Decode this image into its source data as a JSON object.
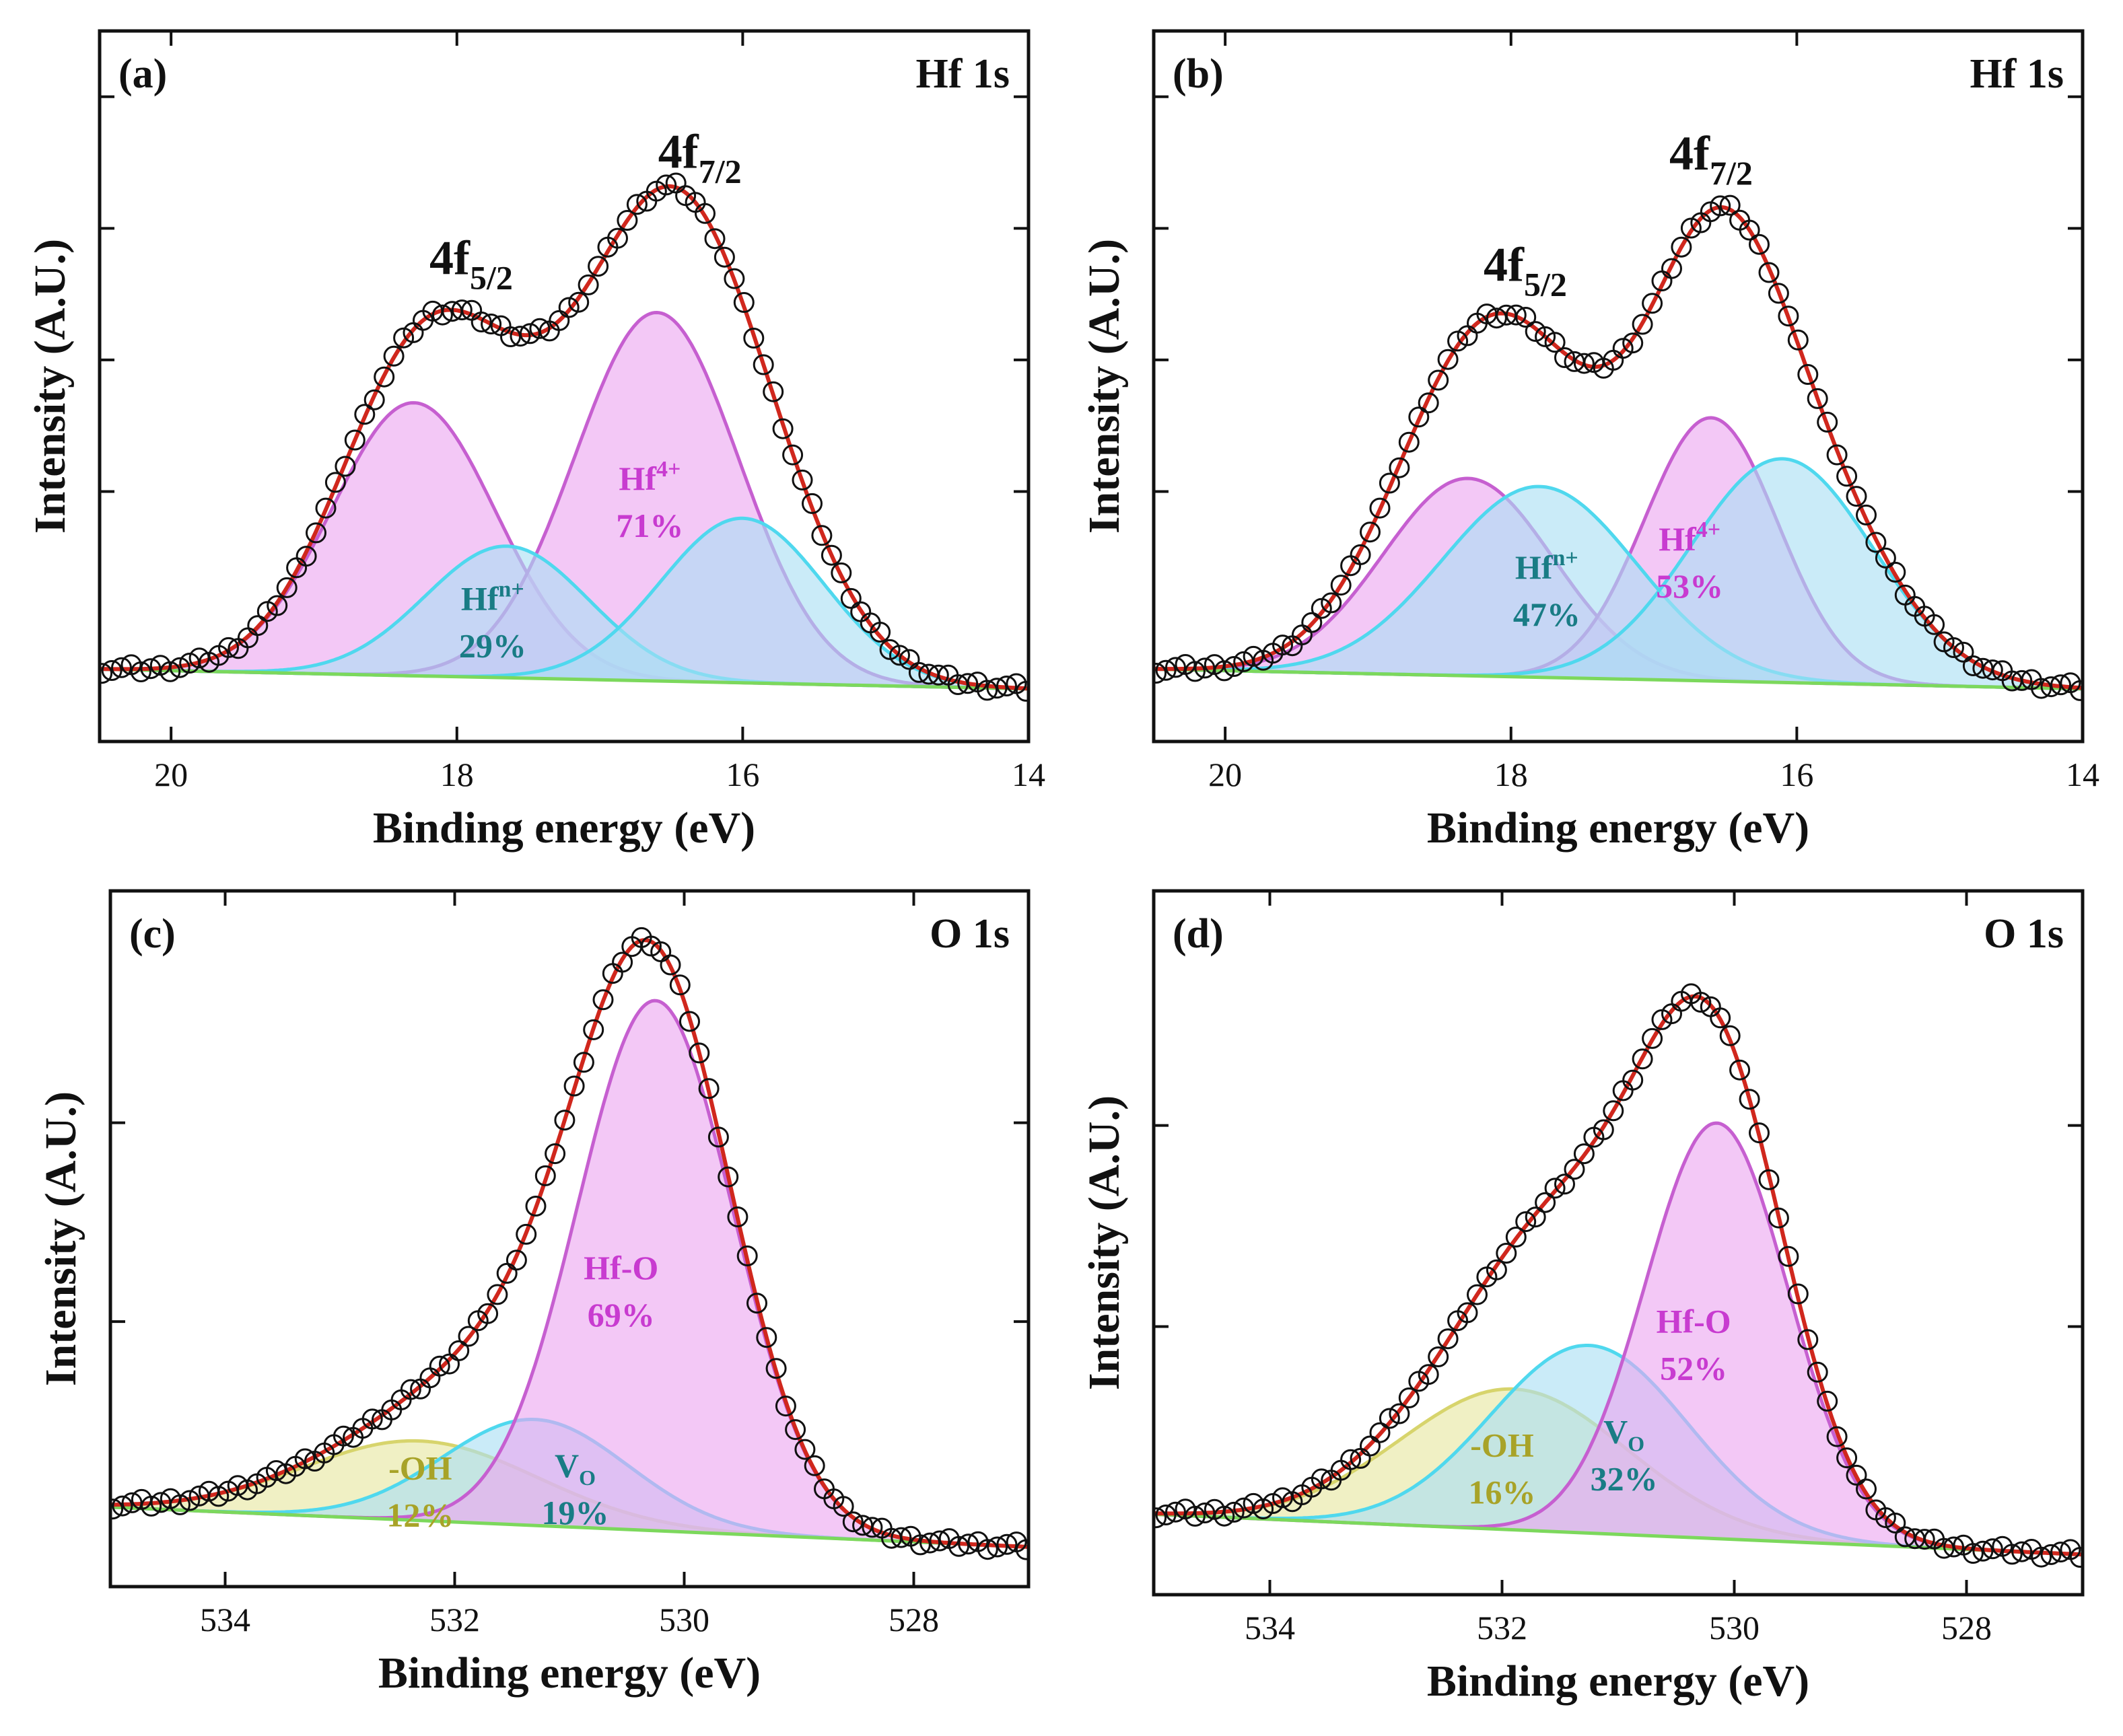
{
  "colors": {
    "magenta_fill": "#EBA6F0",
    "magenta_edge": "#C65FD0",
    "magenta_text": "#C83BD0",
    "cyan_fill": "#A9DEF3",
    "cyan_edge": "#4FD8EE",
    "cyan_text": "#197C85",
    "yellow_fill": "#E6E6A0",
    "yellow_edge": "#D7D46C",
    "yellow_text": "#A8A328",
    "background_line": "#7CD85C",
    "envelope": "#D0271D",
    "markers": "#111111"
  },
  "chart_data": [
    {
      "type": "line",
      "panel": "(a)",
      "title": "Hf 1s",
      "xlabel": "Binding energy (eV)",
      "ylabel": "Intensity (A.U.)",
      "xlim": [
        20.5,
        14
      ],
      "x_reversed": true,
      "ylim": [
        -0.08,
        1.0
      ],
      "xticks": [
        20,
        18,
        16,
        14
      ],
      "y_ticks_unlabeled": [
        0.3,
        0.5,
        0.7,
        0.9
      ],
      "peak_labels": [
        {
          "text": "4f",
          "sub": "5/2",
          "x": 17.9
        },
        {
          "text": "4f",
          "sub": "7/2",
          "x": 16.3
        }
      ],
      "background": {
        "x": [
          20.5,
          14
        ],
        "y": [
          0.03,
          0.0
        ]
      },
      "components": [
        {
          "group": "Hf4+",
          "color": "magenta",
          "peaks": [
            {
              "center": 18.3,
              "height": 0.415,
              "fwhm": 1.35
            },
            {
              "center": 16.6,
              "height": 0.56,
              "fwhm": 1.35
            }
          ]
        },
        {
          "group": "Hfn+",
          "color": "cyan",
          "peaks": [
            {
              "center": 17.65,
              "height": 0.2,
              "fwhm": 1.35
            },
            {
              "center": 16.0,
              "height": 0.25,
              "fwhm": 1.35
            }
          ]
        }
      ],
      "component_labels": [
        {
          "name": "Hf",
          "sup": "4+",
          "percent": "71%",
          "color": "magenta",
          "x": 16.65
        },
        {
          "name": "Hf",
          "sup": "n+",
          "percent": "29%",
          "color": "cyan",
          "x": 17.75
        }
      ]
    },
    {
      "type": "line",
      "panel": "(b)",
      "title": "Hf 1s",
      "xlabel": "Binding energy (eV)",
      "ylabel": "Intensity (A.U.)",
      "xlim": [
        20.5,
        14
      ],
      "x_reversed": true,
      "ylim": [
        -0.08,
        1.0
      ],
      "xticks": [
        20,
        18,
        16,
        14
      ],
      "y_ticks_unlabeled": [
        0.3,
        0.5,
        0.7,
        0.9
      ],
      "peak_labels": [
        {
          "text": "4f",
          "sub": "5/2",
          "x": 17.9
        },
        {
          "text": "4f",
          "sub": "7/2",
          "x": 16.6
        }
      ],
      "background": {
        "x": [
          20.5,
          14
        ],
        "y": [
          0.03,
          0.0
        ]
      },
      "components": [
        {
          "group": "Hf4+",
          "color": "magenta",
          "peaks": [
            {
              "center": 18.3,
              "height": 0.3,
              "fwhm": 1.4
            },
            {
              "center": 16.6,
              "height": 0.4,
              "fwhm": 1.1
            }
          ]
        },
        {
          "group": "Hfn+",
          "color": "cyan",
          "peaks": [
            {
              "center": 17.8,
              "height": 0.29,
              "fwhm": 1.6
            },
            {
              "center": 16.1,
              "height": 0.34,
              "fwhm": 1.5
            }
          ]
        }
      ],
      "component_labels": [
        {
          "name": "Hf",
          "sup": "4+",
          "percent": "53%",
          "color": "magenta",
          "x": 16.75
        },
        {
          "name": "Hf",
          "sup": "n+",
          "percent": "47%",
          "color": "cyan",
          "x": 17.75
        }
      ]
    },
    {
      "type": "line",
      "panel": "(c)",
      "title": "O 1s",
      "xlabel": "Binding energy (eV)",
      "ylabel": "Intensity (A.U.)",
      "xlim": [
        535,
        527
      ],
      "x_reversed": true,
      "ylim": [
        -0.05,
        1.0
      ],
      "xticks": [
        534,
        532,
        530,
        528
      ],
      "y_ticks_unlabeled": [
        0.35,
        0.65
      ],
      "background": {
        "x": [
          535,
          527
        ],
        "y": [
          0.07,
          0.01
        ]
      },
      "components": [
        {
          "group": "-OH",
          "color": "yellow",
          "peaks": [
            {
              "center": 532.3,
              "height": 0.12,
              "fwhm": 2.4
            }
          ]
        },
        {
          "group": "VO",
          "color": "cyan",
          "peaks": [
            {
              "center": 531.3,
              "height": 0.16,
              "fwhm": 1.9
            }
          ]
        },
        {
          "group": "Hf-O",
          "color": "magenta",
          "peaks": [
            {
              "center": 530.25,
              "height": 0.8,
              "fwhm": 1.6
            }
          ]
        }
      ],
      "component_labels": [
        {
          "name": "Hf-O",
          "percent": "69%",
          "color": "magenta",
          "x": 530.55
        },
        {
          "name": "V",
          "sub": "O",
          "percent": "19%",
          "color": "cyan",
          "x": 530.95
        },
        {
          "name": "-OH",
          "percent": "12%",
          "color": "yellow",
          "x": 532.3
        }
      ]
    },
    {
      "type": "line",
      "panel": "(d)",
      "title": "O 1s",
      "xlabel": "Binding energy (eV)",
      "ylabel": "Intensity (A.U.)",
      "xlim": [
        535,
        527
      ],
      "x_reversed": true,
      "ylim": [
        -0.05,
        1.0
      ],
      "xticks": [
        534,
        532,
        530,
        528
      ],
      "y_ticks_unlabeled": [
        0.35,
        0.65
      ],
      "background": {
        "x": [
          535,
          527
        ],
        "y": [
          0.07,
          0.01
        ]
      },
      "components": [
        {
          "group": "-OH",
          "color": "yellow",
          "peaks": [
            {
              "center": 531.9,
              "height": 0.21,
              "fwhm": 2.3
            }
          ]
        },
        {
          "group": "VO",
          "color": "cyan",
          "peaks": [
            {
              "center": 531.25,
              "height": 0.28,
              "fwhm": 2.0
            }
          ]
        },
        {
          "group": "Hf-O",
          "color": "magenta",
          "peaks": [
            {
              "center": 530.15,
              "height": 0.62,
              "fwhm": 1.45
            }
          ]
        }
      ],
      "component_labels": [
        {
          "name": "Hf-O",
          "percent": "52%",
          "color": "magenta",
          "x": 530.35
        },
        {
          "name": "V",
          "sub": "O",
          "percent": "32%",
          "color": "cyan",
          "x": 530.95
        },
        {
          "name": "-OH",
          "percent": "16%",
          "color": "yellow",
          "x": 532.0
        }
      ]
    }
  ]
}
